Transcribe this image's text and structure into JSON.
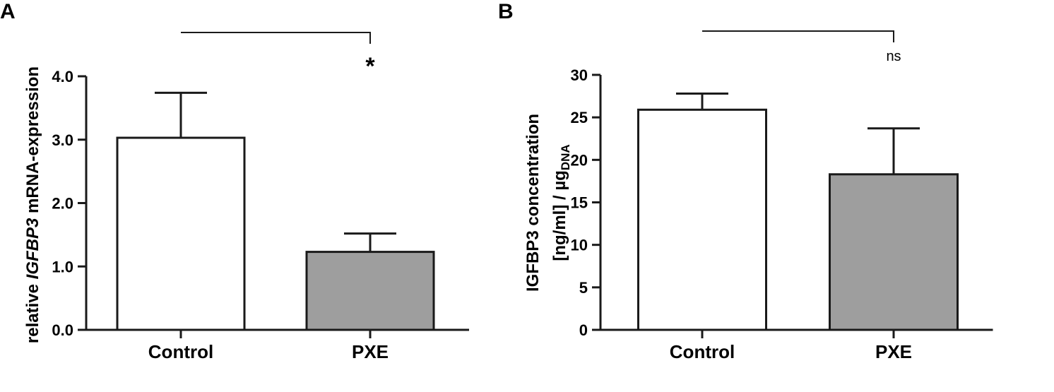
{
  "chart_data": [
    {
      "panel": "A",
      "type": "bar",
      "categories": [
        "Control",
        "PXE"
      ],
      "values": [
        3.03,
        1.23
      ],
      "errors": [
        0.71,
        0.29
      ],
      "bar_colors": [
        "#ffffff",
        "#9e9e9e"
      ],
      "ylabel": {
        "prefix": "relative ",
        "gene": "IGFBP3",
        "suffix": " mRNA-expression"
      },
      "ylim": [
        0,
        4.0
      ],
      "yticks": [
        "0.0",
        "1.0",
        "2.0",
        "3.0",
        "4.0"
      ],
      "grid": false,
      "significance": "*"
    },
    {
      "panel": "B",
      "type": "bar",
      "categories": [
        "Control",
        "PXE"
      ],
      "values": [
        25.9,
        18.3
      ],
      "errors": [
        1.9,
        5.4
      ],
      "bar_colors": [
        "#ffffff",
        "#9e9e9e"
      ],
      "ylabel": {
        "line1": "IGFBP3 concentration",
        "line2": "[ng/ml] / µg",
        "subscript": "DNA"
      },
      "ylim": [
        0,
        30
      ],
      "yticks": [
        "0",
        "5",
        "10",
        "15",
        "20",
        "25",
        "30"
      ],
      "grid": false,
      "significance": "ns"
    }
  ]
}
